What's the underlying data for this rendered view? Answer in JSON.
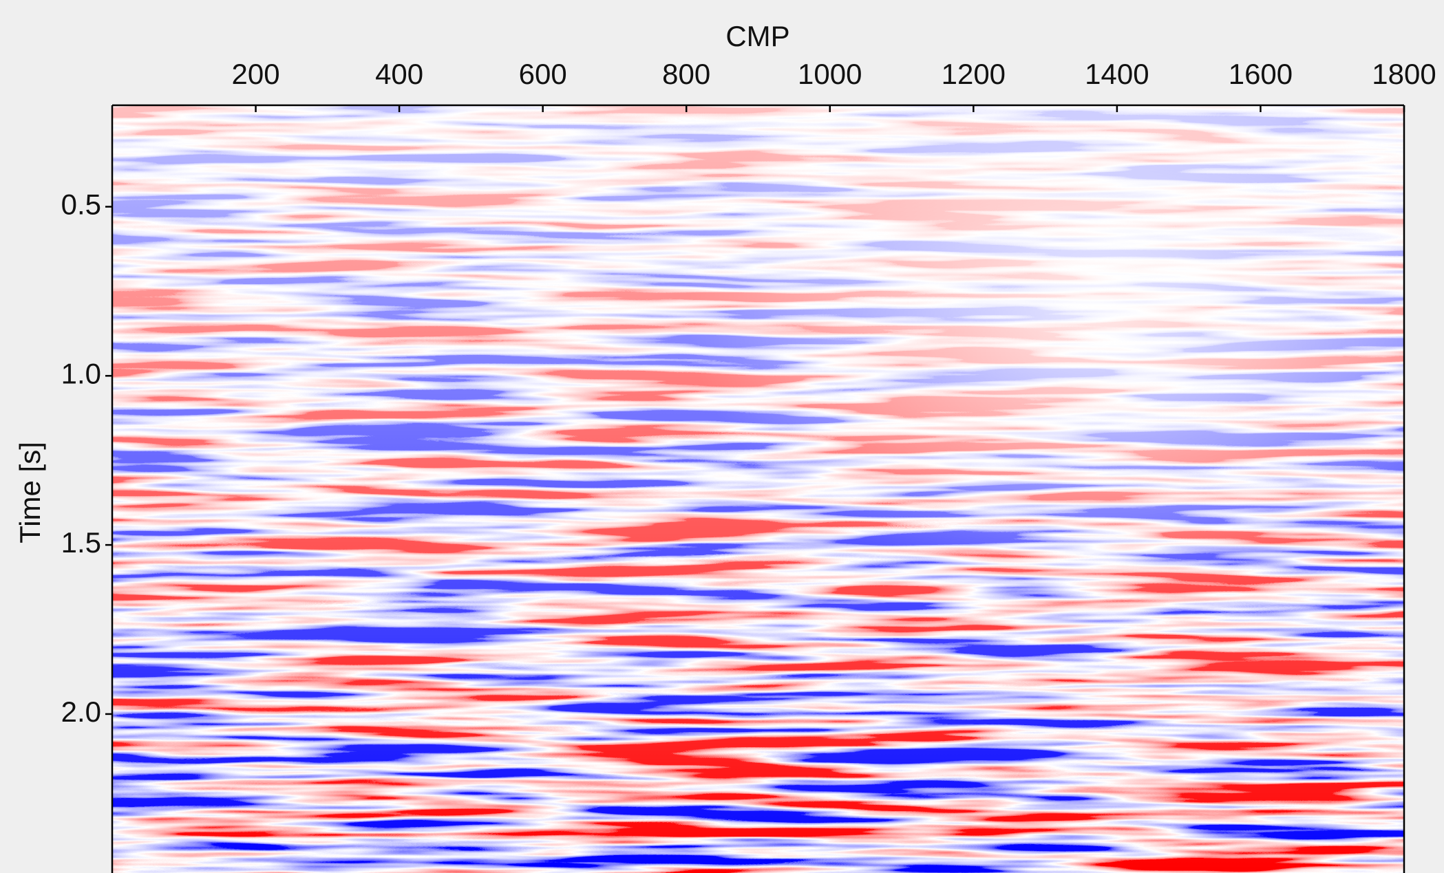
{
  "chart_data": {
    "type": "seismic",
    "x_label": "CMP",
    "y_label": "Time [s]",
    "xlim": [
      0,
      1800
    ],
    "xticks": [
      200,
      400,
      600,
      800,
      1000,
      1200,
      1400,
      1600,
      1800
    ],
    "ylim": [
      0.2,
      2.47
    ],
    "yticks": [
      0.5,
      {
        "value": 1,
        "label": "1.0"
      },
      1.5,
      {
        "value": 2,
        "label": "2.0"
      }
    ],
    "y_inverted": true,
    "x_axis_position": "top",
    "colormap": [
      "#0000ff",
      "#ffffff",
      "#ff0000"
    ]
  }
}
